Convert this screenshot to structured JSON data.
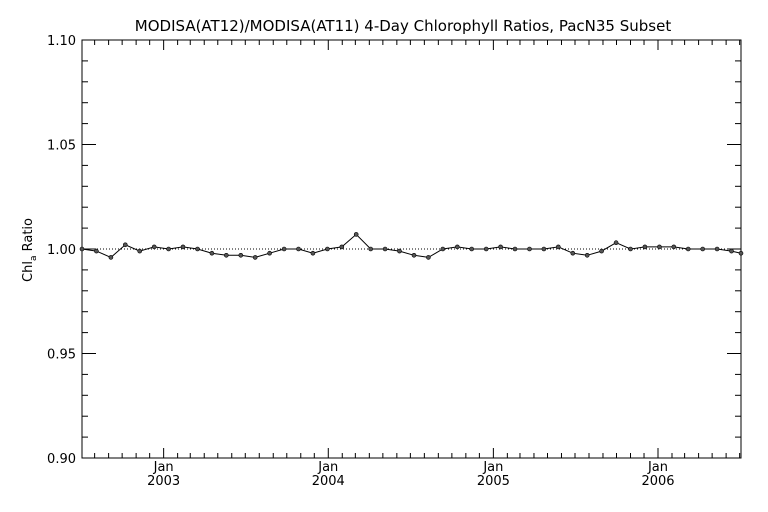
{
  "chart_data": {
    "type": "line",
    "title": "MODISA(AT12)/MODISA(AT11) 4-Day Chlorophyll Ratios, PacN35 Subset",
    "ylabel": "Chl",
    "ylabel_subscript": "a",
    "ylabel_suffix": " Ratio",
    "xlabel": "",
    "ylim": [
      0.9,
      1.1
    ],
    "yticks": [
      "0.90",
      "0.95",
      "1.00",
      "1.05",
      "1.10"
    ],
    "xlim": [
      "2002-07-04",
      "2006-07-04"
    ],
    "xticks": [
      {
        "month": "Jan",
        "year": "2003",
        "date": "2003-01-01"
      },
      {
        "month": "Jan",
        "year": "2004",
        "date": "2004-01-01"
      },
      {
        "month": "Jan",
        "year": "2005",
        "date": "2005-01-01"
      },
      {
        "month": "Jan",
        "year": "2006",
        "date": "2006-01-01"
      }
    ],
    "reference_line": 1.0,
    "grid": false,
    "series": [
      {
        "color": "#000000",
        "x": [
          "2002-07-04",
          "2002-08-05",
          "2002-09-06",
          "2002-10-08",
          "2002-11-09",
          "2002-12-11",
          "2003-01-12",
          "2003-02-13",
          "2003-03-17",
          "2003-04-18",
          "2003-05-20",
          "2003-06-21",
          "2003-07-23",
          "2003-08-24",
          "2003-09-25",
          "2003-10-27",
          "2003-11-28",
          "2003-12-30",
          "2004-01-31",
          "2004-03-03",
          "2004-04-04",
          "2004-05-06",
          "2004-06-07",
          "2004-07-09",
          "2004-08-10",
          "2004-09-11",
          "2004-10-13",
          "2004-11-14",
          "2004-12-16",
          "2005-01-17",
          "2005-02-18",
          "2005-03-22",
          "2005-04-23",
          "2005-05-25",
          "2005-06-26",
          "2005-07-28",
          "2005-08-29",
          "2005-09-30",
          "2005-11-01",
          "2005-12-03",
          "2006-01-04",
          "2006-02-05",
          "2006-03-09",
          "2006-04-10",
          "2006-05-12",
          "2006-06-13",
          "2006-07-04"
        ],
        "y": [
          1.0,
          0.999,
          0.996,
          1.002,
          0.999,
          1.001,
          1.0,
          1.001,
          1.0,
          0.998,
          0.997,
          0.997,
          0.996,
          0.998,
          1.0,
          1.0,
          0.998,
          1.0,
          1.001,
          1.007,
          1.0,
          1.0,
          0.999,
          0.997,
          0.996,
          1.0,
          1.001,
          1.0,
          1.0,
          1.001,
          1.0,
          1.0,
          1.0,
          1.001,
          0.998,
          0.997,
          0.999,
          1.003,
          1.0,
          1.001,
          1.001,
          1.001,
          1.0,
          1.0,
          1.0,
          0.999,
          0.998
        ]
      }
    ]
  }
}
